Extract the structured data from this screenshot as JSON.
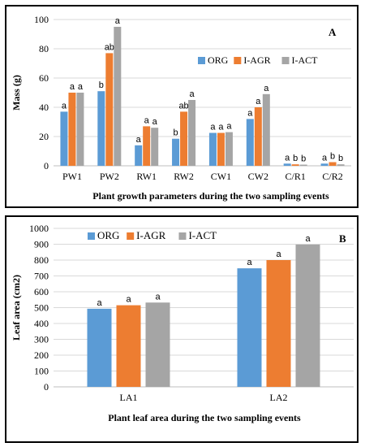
{
  "colors": {
    "ORG": "#5b9bd5",
    "I-AGR": "#ed7d31",
    "I-ACT": "#a5a5a5",
    "grid": "#d9d9d9",
    "axis": "#bfbfbf"
  },
  "chart_data": [
    {
      "panel": "A",
      "type": "bar",
      "title": "",
      "xlabel": "Plant growth parameters during the two sampling events",
      "ylabel": "Mass (g)",
      "ylim": [
        0,
        100
      ],
      "yticks": [
        0,
        20,
        40,
        60,
        80,
        100
      ],
      "grid": true,
      "legend_position": "top-right",
      "categories": [
        "PW1",
        "PW2",
        "RW1",
        "RW2",
        "CW1",
        "CW2",
        "C/R1",
        "C/R2"
      ],
      "series": [
        {
          "name": "ORG",
          "values": [
            37,
            51,
            14,
            18.5,
            22.5,
            32,
            1.5,
            1.5
          ],
          "labels": [
            "a",
            "b",
            "a",
            "b",
            "a",
            "a",
            "a",
            "a"
          ]
        },
        {
          "name": "I-AGR",
          "values": [
            50,
            77,
            27,
            37,
            22.5,
            40,
            1,
            2.5
          ],
          "labels": [
            "a",
            "ab",
            "a",
            "ab",
            "a",
            "a",
            "b",
            "b"
          ]
        },
        {
          "name": "I-ACT",
          "values": [
            50,
            95,
            26,
            45,
            23,
            49,
            0.8,
            1
          ],
          "labels": [
            "a",
            "a",
            "a",
            "a",
            "a",
            "a",
            "b",
            "b"
          ]
        }
      ]
    },
    {
      "panel": "B",
      "type": "bar",
      "title": "",
      "xlabel": "Plant leaf area during the two sampling events",
      "ylabel": "Leaf area (cm2)",
      "ylim": [
        0,
        1000
      ],
      "yticks": [
        0,
        100,
        200,
        300,
        400,
        500,
        600,
        700,
        800,
        900,
        1000
      ],
      "grid": true,
      "legend_position": "top",
      "categories": [
        "LA1",
        "LA2"
      ],
      "series": [
        {
          "name": "ORG",
          "values": [
            493,
            748
          ],
          "labels": [
            "a",
            "a"
          ]
        },
        {
          "name": "I-AGR",
          "values": [
            515,
            800
          ],
          "labels": [
            "a",
            "a"
          ]
        },
        {
          "name": "I-ACT",
          "values": [
            532,
            898
          ],
          "labels": [
            "a",
            "a"
          ]
        }
      ]
    }
  ]
}
